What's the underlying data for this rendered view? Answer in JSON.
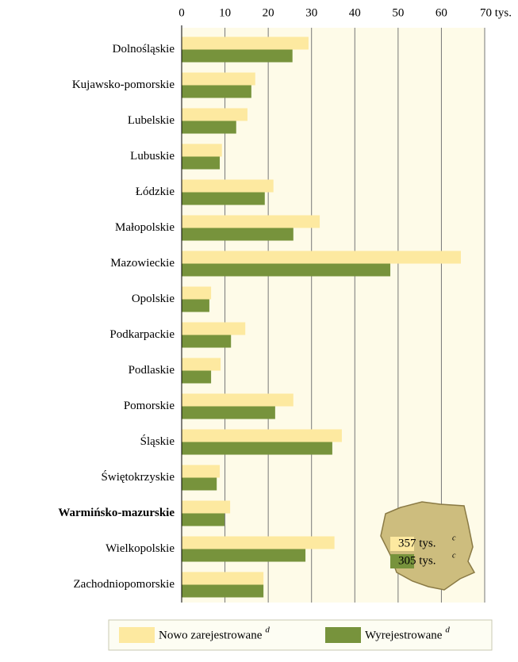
{
  "chart_data": {
    "type": "bar",
    "orientation": "horizontal",
    "categories": [
      "Dolnośląskie",
      "Kujawsko-pomorskie",
      "Lubelskie",
      "Lubuskie",
      "Łódzkie",
      "Małopolskie",
      "Mazowieckie",
      "Opolskie",
      "Podkarpackie",
      "Podlaskie",
      "Pomorskie",
      "Śląskie",
      "Świętokrzyskie",
      "Warmińsko-mazurskie",
      "Wielkopolskie",
      "Zachodniopomorskie"
    ],
    "highlight_index": 13,
    "series": [
      {
        "name": "Nowo zarejestrowane",
        "superscript": "d",
        "color": "#fde9a0",
        "values": [
          29.3,
          17.0,
          15.2,
          9.3,
          21.2,
          31.9,
          64.5,
          6.8,
          14.7,
          9.0,
          25.8,
          37.0,
          8.8,
          11.2,
          35.3,
          18.9
        ]
      },
      {
        "name": "Wyrejestrowane",
        "superscript": "d",
        "color": "#77933c",
        "values": [
          25.6,
          16.1,
          12.6,
          8.8,
          19.2,
          25.8,
          48.2,
          6.4,
          11.4,
          6.8,
          21.6,
          34.8,
          8.1,
          9.9,
          28.6,
          18.9
        ]
      }
    ],
    "xlim": [
      0,
      70
    ],
    "xticks": [
      0,
      10,
      20,
      30,
      40,
      50,
      60,
      {
        "value": 70,
        "label": "70 tys."
      }
    ],
    "grid": true,
    "annotations": [
      {
        "text": "357 tys.",
        "superscript": "c"
      },
      {
        "text": "305 tys.",
        "superscript": "c"
      }
    ]
  }
}
